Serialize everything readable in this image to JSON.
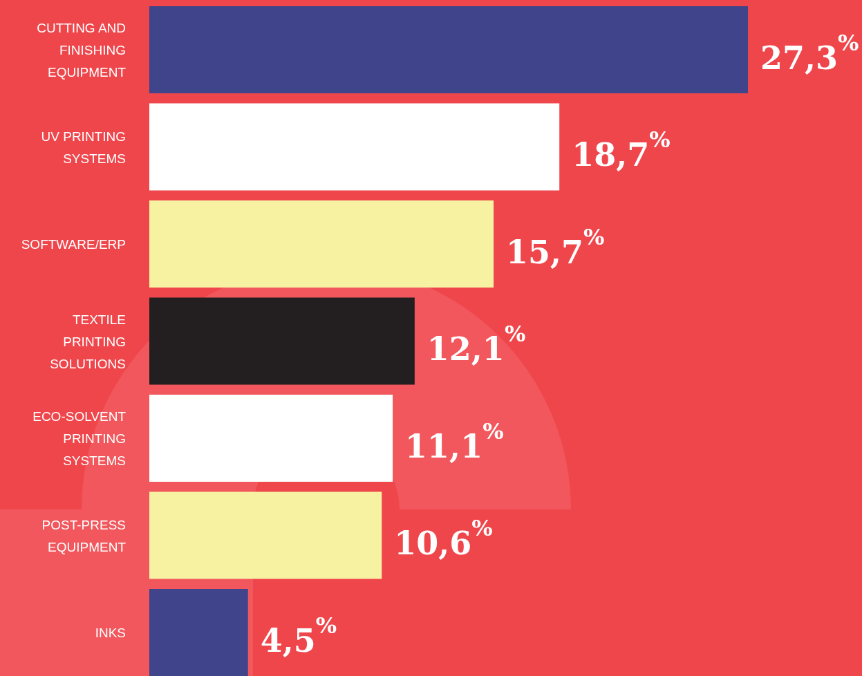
{
  "chart_data": {
    "type": "bar",
    "orientation": "horizontal",
    "categories": [
      "CUTTING AND FINISHING EQUIPMENT",
      "UV PRINTING SYSTEMS",
      "SOFTWARE/ERP",
      "TEXTILE PRINTING SOLUTIONS",
      "ECO-SOLVENT PRINTING SYSTEMS",
      "POST-PRESS EQUIPMENT",
      "INKS"
    ],
    "values": [
      27.3,
      18.7,
      15.7,
      12.1,
      11.1,
      10.6,
      4.5
    ],
    "colors": [
      "#3f448b",
      "#ffffff",
      "#f6f2a2",
      "#231f20",
      "#ffffff",
      "#f6f2a2",
      "#3f448b"
    ],
    "value_labels": [
      "27,3$^{%}$",
      "18,7$^{%}$",
      "15,7$^{%}$",
      "12,1$^{%}$",
      "11,1$^{%}$",
      "10,6$^{%}$",
      "4,5$^{%}$"
    ]
  }
}
